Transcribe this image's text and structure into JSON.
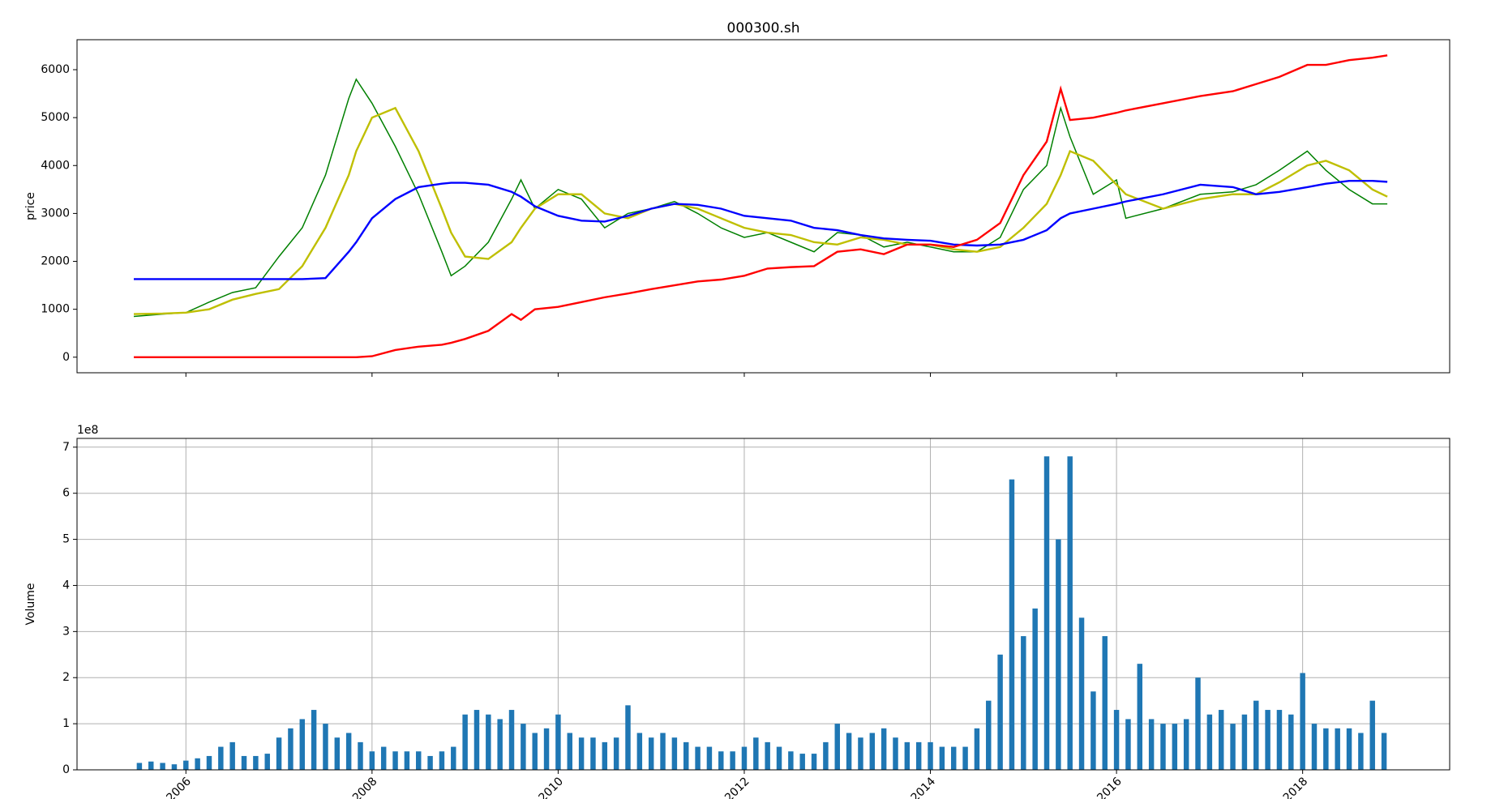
{
  "chart_data": [
    {
      "type": "line",
      "title": "000300.sh",
      "ylabel": "price",
      "x": [
        2005.44,
        2005.75,
        2006.0,
        2006.25,
        2006.5,
        2006.75,
        2007.0,
        2007.25,
        2007.5,
        2007.75,
        2007.83,
        2008.0,
        2008.25,
        2008.5,
        2008.75,
        2008.85,
        2009.0,
        2009.25,
        2009.5,
        2009.6,
        2009.75,
        2010.0,
        2010.25,
        2010.5,
        2010.75,
        2011.0,
        2011.25,
        2011.5,
        2011.75,
        2012.0,
        2012.25,
        2012.5,
        2012.75,
        2013.0,
        2013.25,
        2013.5,
        2013.75,
        2014.0,
        2014.25,
        2014.5,
        2014.75,
        2015.0,
        2015.25,
        2015.4,
        2015.5,
        2015.75,
        2016.0,
        2016.1,
        2016.5,
        2016.9,
        2017.25,
        2017.5,
        2017.75,
        2018.05,
        2018.25,
        2018.5,
        2018.75,
        2018.91
      ],
      "series": [
        {
          "color": "#008000",
          "values": [
            850,
            900,
            930,
            1150,
            1350,
            1450,
            2100,
            2700,
            3800,
            5400,
            5800,
            5300,
            4400,
            3400,
            2200,
            1700,
            1900,
            2400,
            3300,
            3700,
            3100,
            3500,
            3300,
            2700,
            3000,
            3100,
            3250,
            3000,
            2700,
            2500,
            2600,
            2400,
            2200,
            2600,
            2550,
            2300,
            2400,
            2300,
            2200,
            2200,
            2500,
            3500,
            4000,
            5200,
            4600,
            3400,
            3700,
            2900,
            3100,
            3400,
            3450,
            3600,
            3900,
            4300,
            3900,
            3500,
            3200,
            3200
          ]
        },
        {
          "color": "#bfbf00",
          "values": [
            900,
            910,
            930,
            1000,
            1200,
            1320,
            1420,
            1900,
            2700,
            3800,
            4300,
            5000,
            5200,
            4300,
            3100,
            2600,
            2100,
            2050,
            2400,
            2700,
            3100,
            3400,
            3400,
            3000,
            2900,
            3100,
            3200,
            3100,
            2900,
            2700,
            2600,
            2550,
            2400,
            2350,
            2500,
            2450,
            2350,
            2350,
            2250,
            2200,
            2300,
            2700,
            3200,
            3800,
            4300,
            4100,
            3600,
            3400,
            3100,
            3300,
            3400,
            3400,
            3650,
            4000,
            4100,
            3900,
            3500,
            3350
          ]
        },
        {
          "color": "#0000ff",
          "values": [
            1630,
            1630,
            1630,
            1630,
            1630,
            1630,
            1630,
            1630,
            1650,
            2200,
            2400,
            2900,
            3300,
            3550,
            3620,
            3640,
            3640,
            3600,
            3450,
            3350,
            3150,
            2950,
            2850,
            2830,
            2950,
            3100,
            3200,
            3180,
            3100,
            2950,
            2900,
            2850,
            2700,
            2650,
            2550,
            2480,
            2450,
            2430,
            2350,
            2330,
            2350,
            2450,
            2650,
            2900,
            3000,
            3100,
            3200,
            3250,
            3400,
            3600,
            3550,
            3400,
            3450,
            3550,
            3620,
            3680,
            3680,
            3660
          ]
        },
        {
          "color": "#ff0000",
          "values": [
            0,
            0,
            0,
            0,
            0,
            0,
            0,
            0,
            0,
            0,
            0,
            20,
            150,
            220,
            260,
            300,
            380,
            550,
            900,
            780,
            1000,
            1050,
            1150,
            1250,
            1330,
            1420,
            1500,
            1580,
            1620,
            1700,
            1850,
            1880,
            1900,
            2200,
            2250,
            2150,
            2350,
            2350,
            2300,
            2450,
            2800,
            3800,
            4500,
            5600,
            4950,
            5000,
            5100,
            5150,
            5300,
            5450,
            5550,
            5700,
            5850,
            6100,
            6100,
            6200,
            6250,
            6300
          ]
        }
      ],
      "xlim": [
        2004.83,
        2019.58
      ],
      "xticks": [
        2006,
        2008,
        2010,
        2012,
        2014,
        2016,
        2018
      ],
      "ylim": [
        -325,
        6626
      ],
      "yticks": [
        0,
        1000,
        2000,
        3000,
        4000,
        5000,
        6000
      ],
      "grid": false
    },
    {
      "type": "bar",
      "ylabel": "Volume",
      "offset_label": "1e8",
      "color": "#1f77b4",
      "x": [
        2005.5,
        2005.625,
        2005.75,
        2005.875,
        2006.0,
        2006.125,
        2006.25,
        2006.375,
        2006.5,
        2006.625,
        2006.75,
        2006.875,
        2007.0,
        2007.125,
        2007.25,
        2007.375,
        2007.5,
        2007.625,
        2007.75,
        2007.875,
        2008.0,
        2008.125,
        2008.25,
        2008.375,
        2008.5,
        2008.625,
        2008.75,
        2008.875,
        2009.0,
        2009.125,
        2009.25,
        2009.375,
        2009.5,
        2009.625,
        2009.75,
        2009.875,
        2010.0,
        2010.125,
        2010.25,
        2010.375,
        2010.5,
        2010.625,
        2010.75,
        2010.875,
        2011.0,
        2011.125,
        2011.25,
        2011.375,
        2011.5,
        2011.625,
        2011.75,
        2011.875,
        2012.0,
        2012.125,
        2012.25,
        2012.375,
        2012.5,
        2012.625,
        2012.75,
        2012.875,
        2013.0,
        2013.125,
        2013.25,
        2013.375,
        2013.5,
        2013.625,
        2013.75,
        2013.875,
        2014.0,
        2014.125,
        2014.25,
        2014.375,
        2014.5,
        2014.625,
        2014.75,
        2014.875,
        2015.0,
        2015.125,
        2015.25,
        2015.375,
        2015.5,
        2015.625,
        2015.75,
        2015.875,
        2016.0,
        2016.125,
        2016.25,
        2016.375,
        2016.5,
        2016.625,
        2016.75,
        2016.875,
        2017.0,
        2017.125,
        2017.25,
        2017.375,
        2017.5,
        2017.625,
        2017.75,
        2017.875,
        2018.0,
        2018.125,
        2018.25,
        2018.375,
        2018.5,
        2018.625,
        2018.75,
        2018.875
      ],
      "values": [
        0.15,
        0.18,
        0.15,
        0.12,
        0.2,
        0.25,
        0.3,
        0.5,
        0.6,
        0.3,
        0.3,
        0.35,
        0.7,
        0.9,
        1.1,
        1.3,
        1.0,
        0.7,
        0.8,
        0.6,
        0.4,
        0.5,
        0.4,
        0.4,
        0.4,
        0.3,
        0.4,
        0.5,
        1.2,
        1.3,
        1.2,
        1.1,
        1.3,
        1.0,
        0.8,
        0.9,
        1.2,
        0.8,
        0.7,
        0.7,
        0.6,
        0.7,
        1.4,
        0.8,
        0.7,
        0.8,
        0.7,
        0.6,
        0.5,
        0.5,
        0.4,
        0.4,
        0.5,
        0.7,
        0.6,
        0.5,
        0.4,
        0.35,
        0.35,
        0.6,
        1.0,
        0.8,
        0.7,
        0.8,
        0.9,
        0.7,
        0.6,
        0.6,
        0.6,
        0.5,
        0.5,
        0.5,
        0.9,
        1.5,
        2.5,
        6.3,
        2.9,
        3.5,
        6.8,
        5.0,
        6.8,
        3.3,
        1.7,
        2.9,
        1.3,
        1.1,
        2.3,
        1.1,
        1.0,
        1.0,
        1.1,
        2.0,
        1.2,
        1.3,
        1.0,
        1.2,
        1.5,
        1.3,
        1.3,
        1.2,
        2.1,
        1.0,
        0.9,
        0.9,
        0.9,
        0.8,
        1.5,
        0.8
      ],
      "xlim": [
        2004.83,
        2019.58
      ],
      "xticks": [
        2006,
        2008,
        2010,
        2012,
        2014,
        2016,
        2018
      ],
      "ylim": [
        0,
        7.19
      ],
      "yticks": [
        0,
        1,
        2,
        3,
        4,
        5,
        6,
        7
      ],
      "grid": true
    }
  ]
}
